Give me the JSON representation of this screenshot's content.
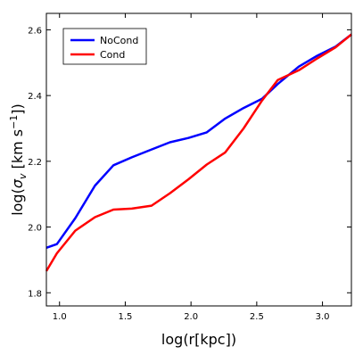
{
  "chart_data": {
    "type": "line",
    "xlabel": "log(r[kpc])",
    "ylabel_parts": {
      "prefix": "log(",
      "sigma": "σ",
      "sub": "v",
      "units": " [km s",
      "sup": "−1",
      "suffix": "])"
    },
    "xlim": [
      0.9,
      3.22
    ],
    "ylim": [
      1.76,
      2.65
    ],
    "x_ticks": [
      1.0,
      1.5,
      2.0,
      2.5,
      3.0
    ],
    "x_tick_labels": [
      "1.0",
      "1.5",
      "2.0",
      "2.5",
      "3.0"
    ],
    "y_ticks": [
      1.8,
      2.0,
      2.2,
      2.4,
      2.6
    ],
    "y_tick_labels": [
      "1.8",
      "2.0",
      "2.2",
      "2.4",
      "2.6"
    ],
    "grid": false,
    "legend_position": "top-left",
    "series": [
      {
        "name": "NoCond",
        "color": "#0000ff",
        "x": [
          0.9,
          0.98,
          1.12,
          1.27,
          1.41,
          1.55,
          1.7,
          1.84,
          1.98,
          2.12,
          2.26,
          2.4,
          2.54,
          2.66,
          2.82,
          2.96,
          3.1,
          3.22
        ],
        "y": [
          1.937,
          1.948,
          2.027,
          2.126,
          2.188,
          2.212,
          2.236,
          2.258,
          2.271,
          2.288,
          2.33,
          2.362,
          2.39,
          2.435,
          2.488,
          2.521,
          2.549,
          2.586
        ]
      },
      {
        "name": "Cond",
        "color": "#ff0000",
        "x": [
          0.9,
          0.98,
          1.12,
          1.27,
          1.41,
          1.55,
          1.7,
          1.84,
          1.98,
          2.12,
          2.26,
          2.4,
          2.54,
          2.66,
          2.82,
          2.96,
          3.1,
          3.22
        ],
        "y": [
          1.866,
          1.92,
          1.989,
          2.03,
          2.053,
          2.056,
          2.065,
          2.103,
          2.145,
          2.19,
          2.227,
          2.3,
          2.385,
          2.447,
          2.477,
          2.513,
          2.547,
          2.586
        ]
      }
    ]
  }
}
